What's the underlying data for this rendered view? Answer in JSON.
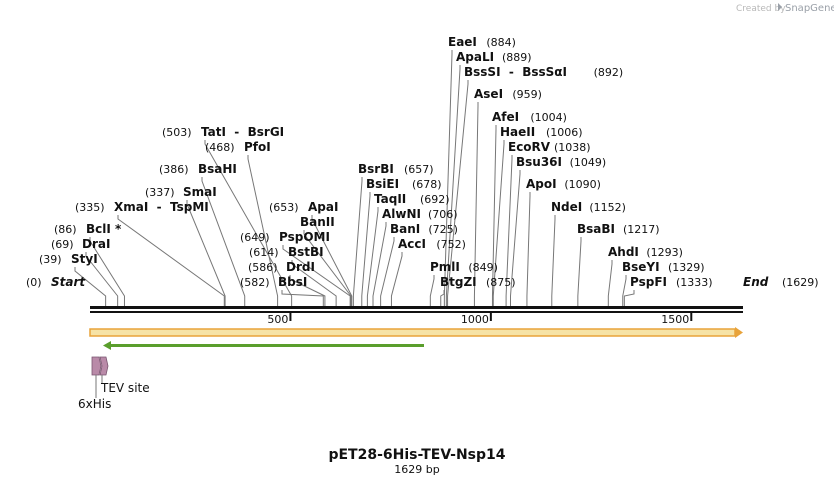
{
  "credit": {
    "prefix": "Created by",
    "brand": "SnapGene"
  },
  "map": {
    "start_label": "Start",
    "start_pos": "(0)",
    "end_label": "End",
    "end_pos": "(1629)",
    "length": 1629,
    "ticks": [
      {
        "value": 500,
        "label": "500"
      },
      {
        "value": 1000,
        "label": "1000"
      },
      {
        "value": 1500,
        "label": "1500"
      }
    ],
    "title": "pET28-6His-TEV-Nsp14",
    "subtitle": "1629 bp"
  },
  "sites": [
    {
      "name": "StyI",
      "pos": "(39)",
      "bp": 39
    },
    {
      "name": "DraI",
      "pos": "(69)",
      "bp": 69
    },
    {
      "name": "BclI *",
      "pos": "(86)",
      "bp": 86
    },
    {
      "name": "XmaI  -  TspMI",
      "pos": "(335)",
      "bp": 335
    },
    {
      "name": "SmaI",
      "pos": "(337)",
      "bp": 337
    },
    {
      "name": "BsaHI",
      "pos": "(386)",
      "bp": 386
    },
    {
      "name": "PfoI",
      "pos": "(468)",
      "bp": 468
    },
    {
      "name": "TatI  -  BsrGI",
      "pos": "(503)",
      "bp": 503
    },
    {
      "name": "BbsI",
      "pos": "(582)",
      "bp": 582
    },
    {
      "name": "DrdI",
      "pos": "(586)",
      "bp": 586
    },
    {
      "name": "BstBI",
      "pos": "(614)",
      "bp": 614
    },
    {
      "name": "PspOMI",
      "pos": "(649)",
      "bp": 649
    },
    {
      "name": "BanII",
      "pos": "",
      "bp": 651
    },
    {
      "name": "ApaI",
      "pos": "(653)",
      "bp": 653
    },
    {
      "name": "BsrBI",
      "pos": "(657)",
      "bp": 657
    },
    {
      "name": "BsiEI",
      "pos": "(678)",
      "bp": 678
    },
    {
      "name": "TaqII",
      "pos": "(692)",
      "bp": 692
    },
    {
      "name": "AlwNI",
      "pos": "(706)",
      "bp": 706
    },
    {
      "name": "BanI",
      "pos": "(725)",
      "bp": 725
    },
    {
      "name": "AccI",
      "pos": "(752)",
      "bp": 752
    },
    {
      "name": "PmlI",
      "pos": "(849)",
      "bp": 849
    },
    {
      "name": "BtgZI",
      "pos": "(875)",
      "bp": 875
    },
    {
      "name": "EaeI",
      "pos": "(884)",
      "bp": 884
    },
    {
      "name": "ApaLI",
      "pos": "(889)",
      "bp": 889
    },
    {
      "name": "BssSI  -  BssSαI",
      "pos": "(892)",
      "bp": 892
    },
    {
      "name": "AseI",
      "pos": "(959)",
      "bp": 959
    },
    {
      "name": "AfeI",
      "pos": "(1004)",
      "bp": 1004
    },
    {
      "name": "HaeII",
      "pos": "(1006)",
      "bp": 1006
    },
    {
      "name": "EcoRV",
      "pos": "(1038)",
      "bp": 1038
    },
    {
      "name": "Bsu36I",
      "pos": "(1049)",
      "bp": 1049
    },
    {
      "name": "ApoI",
      "pos": "(1090)",
      "bp": 1090
    },
    {
      "name": "NdeI",
      "pos": "(1152)",
      "bp": 1152
    },
    {
      "name": "BsaBI",
      "pos": "(1217)",
      "bp": 1217
    },
    {
      "name": "AhdI",
      "pos": "(1293)",
      "bp": 1293
    },
    {
      "name": "BseYI",
      "pos": "(1329)",
      "bp": 1329
    },
    {
      "name": "PspFI",
      "pos": "(1333)",
      "bp": 1333
    }
  ],
  "features": {
    "orf_color": "#e8a33a",
    "orf_fill": "#f6e3a6",
    "primer_color": "#5a9e2c",
    "tag_color": "#b98aa8",
    "tev_label": "TEV site",
    "his_label": "6xHis"
  },
  "colors": {
    "backbone": "#111111",
    "leader": "#777777"
  }
}
